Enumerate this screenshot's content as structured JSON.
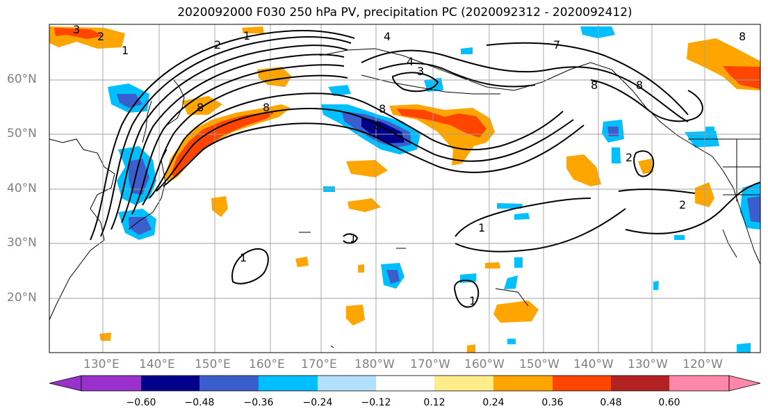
{
  "title": "2020092000 F030 250 hPa PV, precipitation PC (2020092312 - 2020092412)",
  "lat_labels": [
    "60°N",
    "50°N",
    "40°N",
    "30°N",
    "20°N"
  ],
  "lon_labels": [
    "130°E",
    "140°E",
    "150°E",
    "160°E",
    "170°E",
    "180°W",
    "170°W",
    "160°W",
    "150°W",
    "140°W",
    "130°W",
    "120°W"
  ],
  "colorbar": {
    "colors": [
      "#9932cc",
      "#00008b",
      "#3a5fcd",
      "#00bfff",
      "#b2e0ff",
      "#ffffff",
      "#ffec8b",
      "#ffa500",
      "#ff4500",
      "#b22222",
      "#ff88aa"
    ],
    "ticks": [
      "−0.60",
      "−0.48",
      "−0.36",
      "−0.24",
      "−0.12",
      "0.12",
      "0.24",
      "0.36",
      "0.48",
      "0.60"
    ]
  },
  "contour_labels": [
    "3",
    "2",
    "1",
    "2",
    "1",
    "4",
    "4",
    "3",
    "7",
    "8",
    "8",
    "8",
    "8",
    "8",
    "8",
    "8",
    "2",
    "2",
    "1",
    "1",
    "1",
    "1"
  ]
}
